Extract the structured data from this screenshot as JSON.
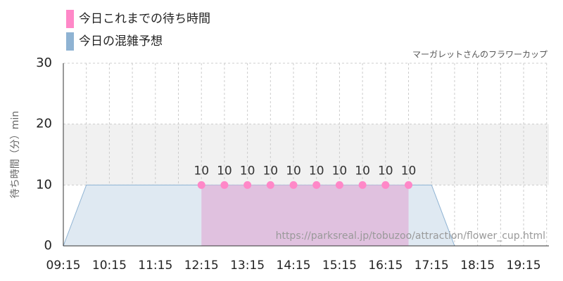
{
  "chart_data": {
    "type": "area",
    "title": "マーガレットさんのフラワーカップ",
    "y_label": "待ち時間（分）min",
    "watermark": "https://parksreal.jp/tobuzoo/attraction/flower_cup.html",
    "categories": [
      "09:15",
      null,
      "10:15",
      null,
      "11:15",
      null,
      "12:15",
      null,
      "13:15",
      null,
      "14:15",
      null,
      "15:15",
      null,
      "16:15",
      null,
      "17:15",
      null,
      "18:15",
      null,
      "19:15",
      null
    ],
    "series": [
      {
        "name": "今日これまでの待ち時間",
        "color": "#ff88c8",
        "fill": "#e0bddd",
        "values": [
          null,
          null,
          null,
          null,
          null,
          null,
          10,
          10,
          10,
          10,
          10,
          10,
          10,
          10,
          10,
          10,
          null,
          null,
          null,
          null,
          null,
          null
        ]
      },
      {
        "name": "今日の混雑予想",
        "color": "#8fb3d3",
        "fill": "#dfe9f2",
        "values": [
          0,
          10,
          10,
          10,
          10,
          10,
          10,
          10,
          10,
          10,
          10,
          10,
          10,
          10,
          10,
          10,
          10,
          0,
          0,
          0,
          0,
          0
        ]
      }
    ],
    "ylim": [
      0,
      30
    ],
    "yticks": [
      0,
      10,
      20,
      30
    ],
    "band": [
      10,
      20
    ],
    "grid": true
  }
}
